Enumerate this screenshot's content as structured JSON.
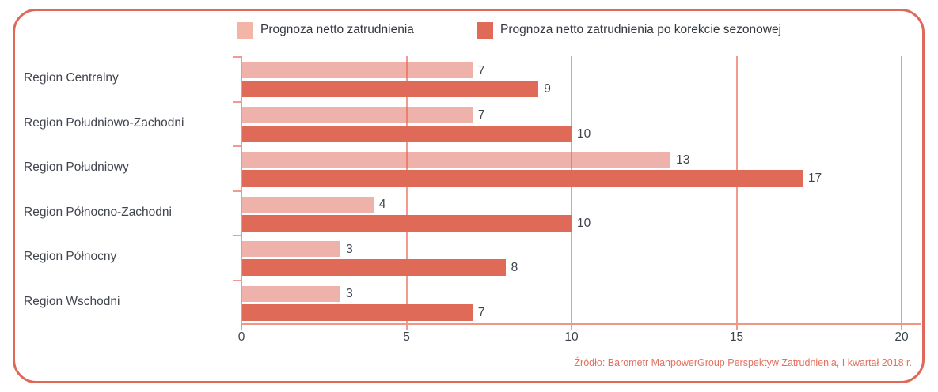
{
  "source": "Źródło: Barometr ManpowerGroup Perspektyw Zatrudnienia, I kwartał 2018 r.",
  "colors": {
    "border": "#df6859",
    "bar_light": "#f2b5a6",
    "bar_dark": "#e06a58",
    "gridline": "#f29a8b",
    "text": "#3e434d",
    "source_text": "#e4705e"
  },
  "chart_data": {
    "type": "bar",
    "orientation": "horizontal",
    "title": "",
    "categories": [
      "Region Centralny",
      "Region Południowo-Zachodni",
      "Region Południowy",
      "Region Północno-Zachodni",
      "Region Północny",
      "Region Wschodni"
    ],
    "series": [
      {
        "name": "Prognoza netto zatrudnienia",
        "color": "#f2b5a6",
        "values": [
          7,
          7,
          13,
          4,
          3,
          3
        ]
      },
      {
        "name": "Prognoza netto zatrudnienia po korekcie sezonowej",
        "color": "#e06a58",
        "values": [
          9,
          10,
          17,
          10,
          8,
          7
        ]
      }
    ],
    "xlim": [
      0,
      20
    ],
    "xticks": [
      0,
      5,
      10,
      15,
      20
    ],
    "grid": true,
    "legend_position": "top",
    "value_labels": true
  }
}
